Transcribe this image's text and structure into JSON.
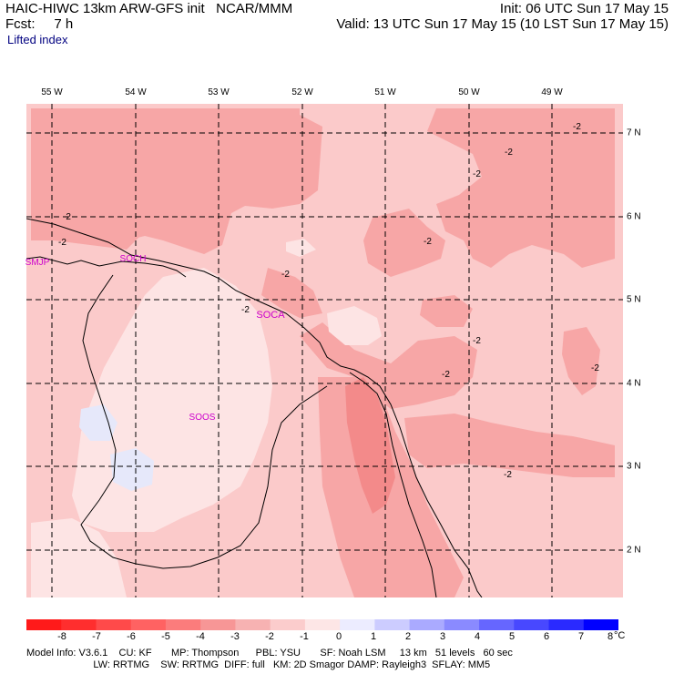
{
  "header": {
    "title_left": "HAIC-HIWC 13km ARW-GFS init   NCAR/MMM",
    "fcst_line": "Fcst:     7 h",
    "init_line": "Init: 06 UTC Sun 17 May 15",
    "valid_line": "Valid: 13 UTC Sun 17 May 15 (10 LST Sun 17 May 15)",
    "field_name": "Lifted index"
  },
  "map": {
    "longitude_labels": [
      "55 W",
      "54 W",
      "53 W",
      "52 W",
      "51 W",
      "50 W",
      "49 W"
    ],
    "latitude_labels": [
      "7 N",
      "6 N",
      "5 N",
      "4 N",
      "3 N",
      "2 N"
    ],
    "stations": [
      "SMJP",
      "SOCH",
      "SOCA",
      "SOOS"
    ],
    "contour_label": "-2",
    "colors": {
      "fill_minus3_minus2": "#f7a6a6",
      "fill_minus2_minus1": "#fbcaca",
      "fill_minus1_0": "#fde4e4",
      "fill_minus4_minus3": "#f38a8a",
      "fill_0_1": "#f2f2fe",
      "fill_1_2": "#e6e8fa"
    }
  },
  "legend": {
    "labels": [
      "-8",
      "-7",
      "-6",
      "-5",
      "-4",
      "-3",
      "-2",
      "-1",
      "0",
      "1",
      "2",
      "3",
      "4",
      "5",
      "6",
      "7",
      "8"
    ],
    "unit": "°C",
    "colors": [
      "#ff1a1a",
      "#ff2e2e",
      "#ff4a4a",
      "#ff6262",
      "#fb7c7c",
      "#f79696",
      "#f7b2b2",
      "#fbcccc",
      "#fde6e6",
      "#ececff",
      "#ccccff",
      "#aaaaff",
      "#8a8aff",
      "#6666ff",
      "#4848ff",
      "#2a2aff",
      "#0000ff"
    ]
  },
  "footer": {
    "line1": "Model Info: V3.6.1    CU: KF       MP: Thompson      PBL: YSU       SF: Noah LSM     13 km   51 levels   60 sec",
    "line2": "                        LW: RRTMG    SW: RRTMG  DIFF: full   KM: 2D Smagor DAMP: Rayleigh3  SFLAY: MM5"
  }
}
